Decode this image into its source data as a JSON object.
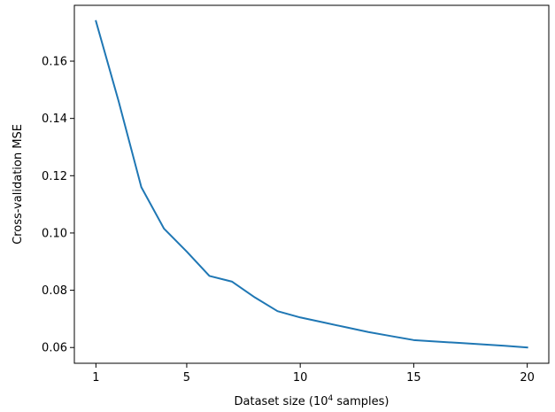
{
  "chart_data": {
    "type": "line",
    "title": "",
    "xlabel": "Dataset size (10",
    "xlabel_sup": "4",
    "xlabel_tail": " samples)",
    "ylabel": "Cross-validation MSE",
    "xlim": [
      0.05,
      20.95
    ],
    "ylim": [
      0.0545,
      0.1795
    ],
    "xticks": [
      1,
      5,
      10,
      15,
      20
    ],
    "yticks": [
      0.06,
      0.08,
      0.1,
      0.12,
      0.14,
      0.16
    ],
    "ytick_labels": [
      "0.06",
      "0.08",
      "0.10",
      "0.12",
      "0.14",
      "0.16"
    ],
    "grid": false,
    "series": [
      {
        "color": "#1f77b4",
        "x": [
          1,
          2,
          3,
          4,
          5,
          6,
          7,
          8,
          9,
          10,
          11,
          12,
          13,
          14,
          15,
          16,
          17,
          18,
          19,
          20
        ],
        "y": [
          0.174,
          0.146,
          0.116,
          0.1015,
          0.0935,
          0.085,
          0.083,
          0.0775,
          0.0727,
          0.0705,
          0.0688,
          0.0671,
          0.0654,
          0.064,
          0.0626,
          0.0621,
          0.0616,
          0.0611,
          0.0606,
          0.06
        ]
      }
    ]
  }
}
